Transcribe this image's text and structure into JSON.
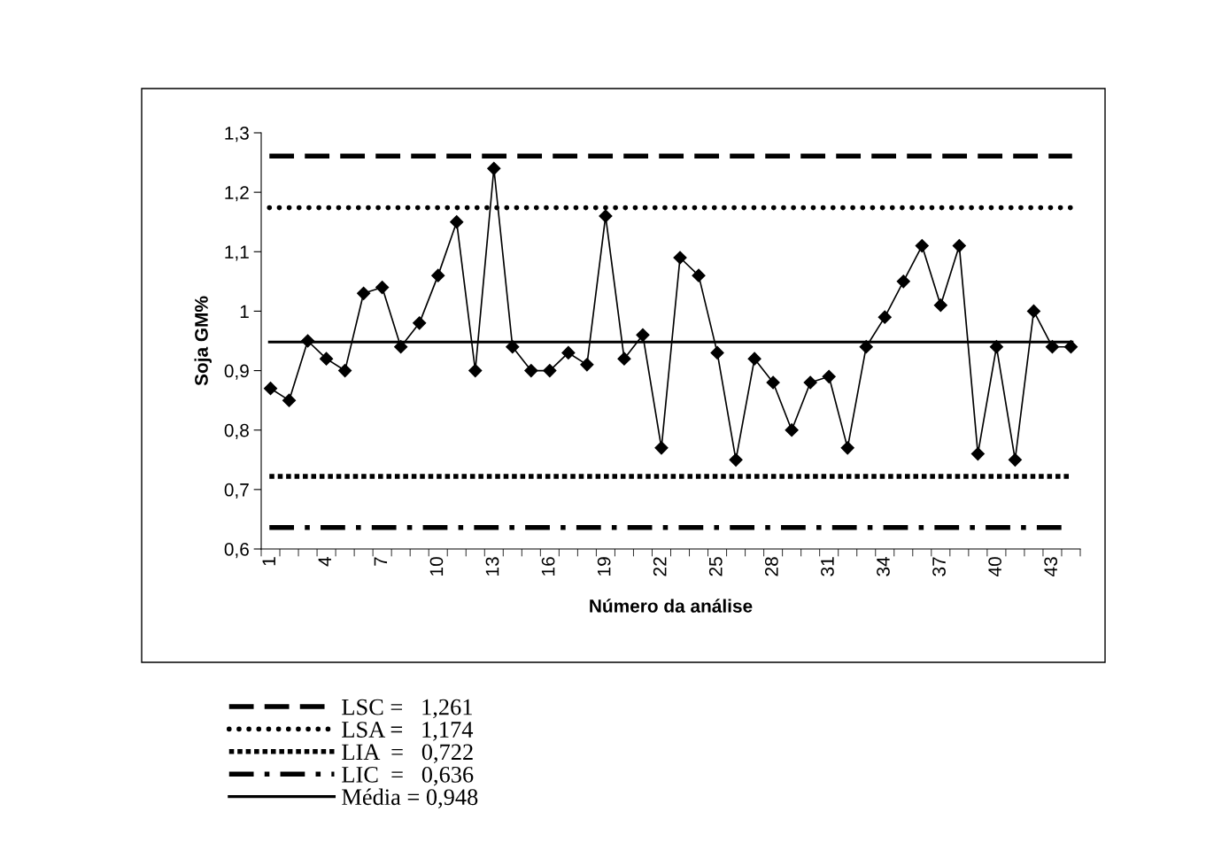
{
  "chart_data": {
    "type": "line",
    "xlabel": "Número da análise",
    "ylabel": "Soja GM%",
    "categories": [
      "1",
      null,
      null,
      "4",
      null,
      null,
      "7",
      null,
      null,
      "10",
      null,
      null,
      "13",
      null,
      null,
      "16",
      null,
      null,
      "19",
      null,
      null,
      "22",
      null,
      null,
      "25",
      null,
      null,
      "28",
      null,
      null,
      "31",
      null,
      null,
      "34",
      null,
      null,
      "37",
      null,
      null,
      "40",
      null,
      null,
      "43",
      null
    ],
    "series": [
      {
        "color": "#000000",
        "values": [
          0.87,
          0.85,
          0.95,
          0.92,
          0.9,
          1.03,
          1.04,
          0.94,
          0.98,
          1.06,
          1.15,
          0.9,
          1.24,
          0.94,
          0.9,
          0.9,
          0.93,
          0.91,
          1.16,
          0.92,
          0.96,
          0.77,
          1.09,
          1.06,
          0.93,
          0.75,
          0.92,
          0.88,
          0.8,
          0.88,
          0.89,
          0.77,
          0.94,
          0.99,
          1.05,
          1.11,
          1.01,
          1.11,
          0.76,
          0.94,
          0.75,
          1.0,
          0.94,
          0.94
        ]
      }
    ],
    "marker": "diamond",
    "line_style": "solid",
    "grid": false,
    "legend": "bottom left",
    "ylim": [
      0.6,
      1.3
    ],
    "yticks": [
      {
        "value": 0.6,
        "label": "0,6"
      },
      {
        "value": 0.7,
        "label": "0,7"
      },
      {
        "value": 0.8,
        "label": "0,8"
      },
      {
        "value": 0.9,
        "label": "0,9"
      },
      {
        "value": 1.0,
        "label": "1"
      },
      {
        "value": 1.1,
        "label": "1,1"
      },
      {
        "value": 1.2,
        "label": "1,2"
      },
      {
        "value": 1.3,
        "label": "1,3"
      }
    ],
    "ref_lines": [
      {
        "axis": "y",
        "value": 1.261,
        "label": "LSC =   1,261",
        "color": "#000000",
        "line_style": "dashed"
      },
      {
        "axis": "y",
        "value": 1.174,
        "label": "LSA =   1,174",
        "color": "#000000",
        "line_style": "dotted"
      },
      {
        "axis": "y",
        "value": 0.722,
        "label": "LIA  =   0,722",
        "color": "#000000",
        "line_style": "dotted"
      },
      {
        "axis": "y",
        "value": 0.636,
        "label": "LIC  =   0,636",
        "color": "#000000",
        "line_style": "dashdot"
      },
      {
        "axis": "y",
        "value": 0.948,
        "label": "Média = 0,948",
        "color": "#000000",
        "line_style": "solid"
      }
    ]
  }
}
